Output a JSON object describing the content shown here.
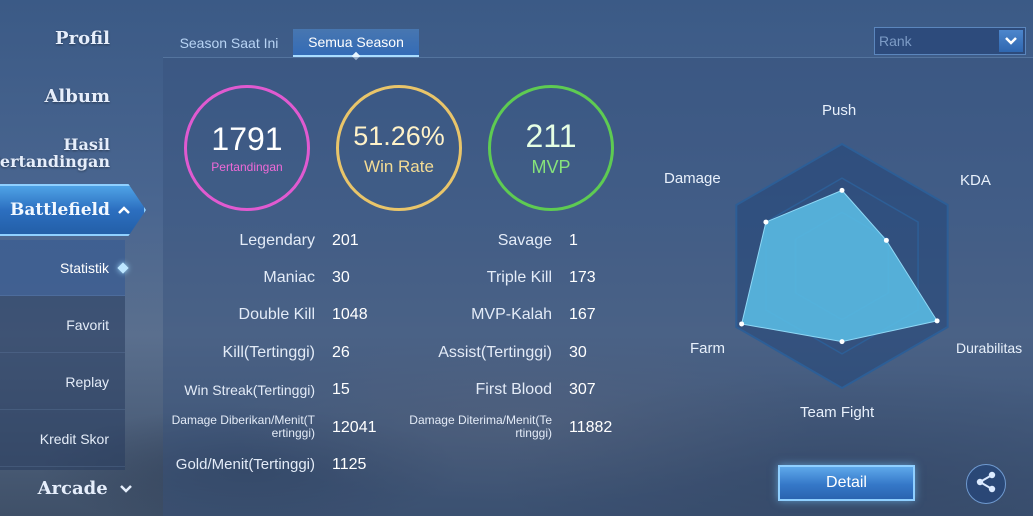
{
  "sidebar": {
    "main_items": [
      "Profil",
      "Album",
      "Hasil",
      "Pertandingan"
    ],
    "active_label": "Battlefield",
    "sub_items": [
      {
        "label": "Statistik",
        "active": true
      },
      {
        "label": "Favorit",
        "active": false
      },
      {
        "label": "Replay",
        "active": false
      },
      {
        "label": "Kredit Skor",
        "active": false
      }
    ],
    "arcade_label": "Arcade"
  },
  "tabs": [
    "Season Saat Ini",
    "Semua Season"
  ],
  "active_tab": "Semua Season",
  "dropdown": {
    "placeholder": "Rank"
  },
  "summary": {
    "matches": {
      "value": "1791",
      "label": "Pertandingan"
    },
    "win_rate": {
      "value": "51.26%",
      "label": "Win Rate"
    },
    "mvp": {
      "value": "211",
      "label": "MVP"
    }
  },
  "stats_left": [
    {
      "label": "Legendary",
      "value": "201"
    },
    {
      "label": "Maniac",
      "value": "30"
    },
    {
      "label": "Double Kill",
      "value": "1048"
    },
    {
      "label": "Kill(Tertinggi)",
      "value": "26"
    },
    {
      "label": "Win Streak(Tertinggi)",
      "value": "15"
    },
    {
      "label": "Damage Diberikan/Menit(T",
      "label2": "ertinggi)",
      "value": "12041"
    },
    {
      "label": "Gold/Menit(Tertinggi)",
      "value": "1125"
    }
  ],
  "stats_right": [
    {
      "label": "Savage",
      "value": "1"
    },
    {
      "label": "Triple Kill",
      "value": "173"
    },
    {
      "label": "MVP-Kalah",
      "value": "167"
    },
    {
      "label": "Assist(Tertinggi)",
      "value": "30"
    },
    {
      "label": "First Blood",
      "value": "307"
    },
    {
      "label": "Damage Diterima/Menit(Te",
      "label2": "rtinggi)",
      "value": "11882"
    }
  ],
  "radar": {
    "axes": [
      "Push",
      "KDA",
      "Durabilitas",
      "Team Fight",
      "Farm",
      "Damage"
    ],
    "values": [
      0.62,
      0.42,
      0.9,
      0.62,
      0.95,
      0.72
    ],
    "fill_color": "#5cc0e8",
    "grid_color": "#2d5e96"
  },
  "buttons": {
    "detail": "Detail"
  },
  "icons": {
    "share": "share-icon",
    "dropdown": "chevron-down-icon",
    "collapse": "chevron-up-icon"
  }
}
